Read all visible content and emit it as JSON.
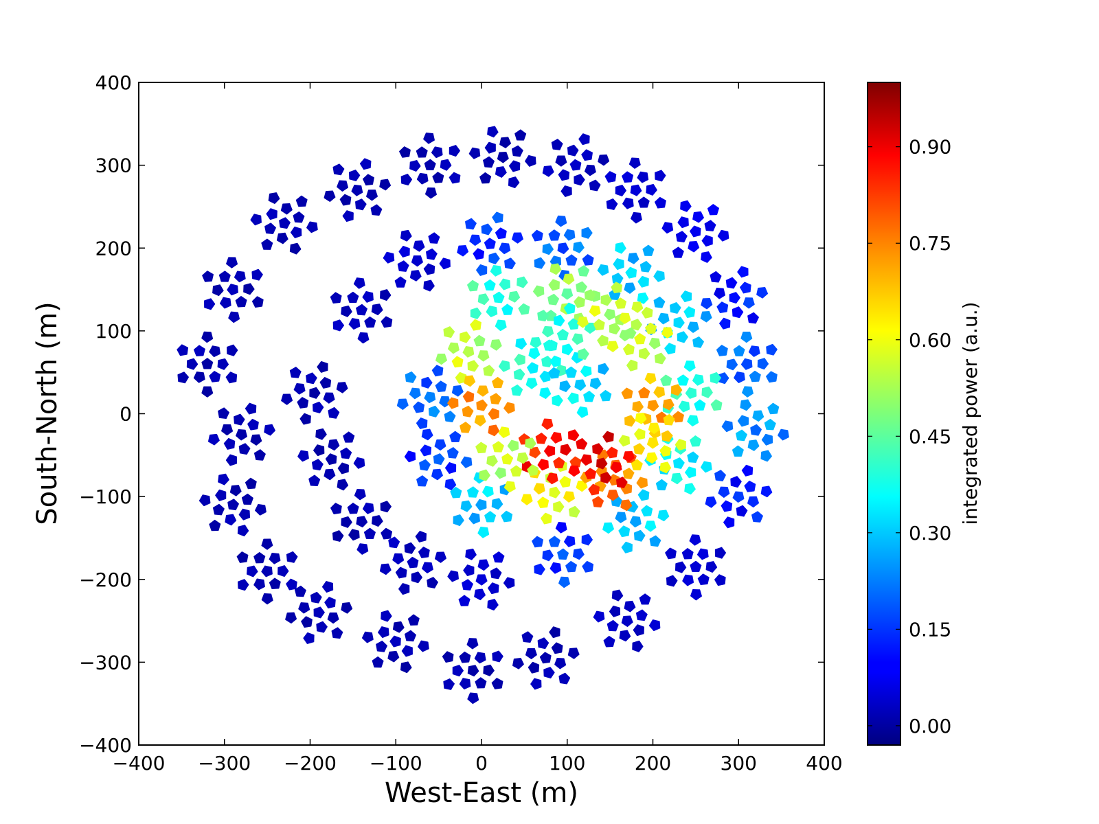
{
  "chart_data": {
    "type": "scatter",
    "title": "",
    "xlabel": "West-East (m)",
    "ylabel": "South-North (m)",
    "xlim": [
      -400,
      400
    ],
    "ylim": [
      -400,
      400
    ],
    "xticks": [
      "−400",
      "−300",
      "−200",
      "−100",
      "0",
      "100",
      "200",
      "300",
      "400"
    ],
    "yticks": [
      "−400",
      "−300",
      "−200",
      "−100",
      "0",
      "100",
      "200",
      "300",
      "400"
    ],
    "grid": false,
    "marker": "pentagon-ring tiles of small antenna elements",
    "colorbar": {
      "label": "integrated power (a.u.)",
      "colormap": "jet",
      "range": [
        -0.03,
        1.0
      ],
      "ticks": [
        "0.00",
        "0.15",
        "0.30",
        "0.45",
        "0.60",
        "0.75",
        "0.90"
      ]
    },
    "stations": [
      {
        "x": -320,
        "y": 60,
        "value": 0.02
      },
      {
        "x": -280,
        "y": -25,
        "value": 0.02
      },
      {
        "x": -290,
        "y": -110,
        "value": 0.02
      },
      {
        "x": -250,
        "y": -190,
        "value": 0.02
      },
      {
        "x": -190,
        "y": -240,
        "value": 0.02
      },
      {
        "x": -100,
        "y": -275,
        "value": 0.02
      },
      {
        "x": -10,
        "y": -310,
        "value": 0.02
      },
      {
        "x": 75,
        "y": -295,
        "value": 0.02
      },
      {
        "x": 170,
        "y": -250,
        "value": 0.04
      },
      {
        "x": 250,
        "y": -185,
        "value": 0.05
      },
      {
        "x": 300,
        "y": -100,
        "value": 0.12
      },
      {
        "x": 320,
        "y": -20,
        "value": 0.25
      },
      {
        "x": 310,
        "y": 60,
        "value": 0.2
      },
      {
        "x": 295,
        "y": 140,
        "value": 0.12
      },
      {
        "x": 250,
        "y": 220,
        "value": 0.08
      },
      {
        "x": 180,
        "y": 270,
        "value": 0.05
      },
      {
        "x": 110,
        "y": 300,
        "value": 0.03
      },
      {
        "x": 25,
        "y": 310,
        "value": 0.02
      },
      {
        "x": -60,
        "y": 300,
        "value": 0.02
      },
      {
        "x": -145,
        "y": 270,
        "value": 0.02
      },
      {
        "x": -230,
        "y": 230,
        "value": 0.02
      },
      {
        "x": -290,
        "y": 150,
        "value": 0.02
      },
      {
        "x": -195,
        "y": 25,
        "value": 0.02
      },
      {
        "x": -175,
        "y": -55,
        "value": 0.02
      },
      {
        "x": -140,
        "y": -130,
        "value": 0.02
      },
      {
        "x": -80,
        "y": -180,
        "value": 0.03
      },
      {
        "x": 0,
        "y": -200,
        "value": 0.05
      },
      {
        "x": 95,
        "y": -170,
        "value": 0.15
      },
      {
        "x": 180,
        "y": -130,
        "value": 0.3
      },
      {
        "x": 230,
        "y": -60,
        "value": 0.35
      },
      {
        "x": 245,
        "y": 25,
        "value": 0.4
      },
      {
        "x": 230,
        "y": 110,
        "value": 0.3
      },
      {
        "x": 175,
        "y": 170,
        "value": 0.3
      },
      {
        "x": 95,
        "y": 200,
        "value": 0.2
      },
      {
        "x": 10,
        "y": 205,
        "value": 0.15
      },
      {
        "x": -75,
        "y": 185,
        "value": 0.05
      },
      {
        "x": -140,
        "y": 125,
        "value": 0.03
      },
      {
        "x": -60,
        "y": 20,
        "value": 0.2
      },
      {
        "x": -50,
        "y": -55,
        "value": 0.15
      },
      {
        "x": 0,
        "y": -110,
        "value": 0.3
      },
      {
        "x": 85,
        "y": -95,
        "value": 0.6
      },
      {
        "x": 155,
        "y": -80,
        "value": 0.75
      },
      {
        "x": 200,
        "y": 10,
        "value": 0.7
      },
      {
        "x": 185,
        "y": 90,
        "value": 0.55
      },
      {
        "x": 100,
        "y": 145,
        "value": 0.5
      },
      {
        "x": 20,
        "y": 140,
        "value": 0.4
      },
      {
        "x": -15,
        "y": 75,
        "value": 0.55
      },
      {
        "x": 0,
        "y": 10,
        "value": 0.72
      },
      {
        "x": 80,
        "y": -45,
        "value": 0.85
      },
      {
        "x": 140,
        "y": -60,
        "value": 0.88
      },
      {
        "x": 60,
        "y": 55,
        "value": 0.38
      },
      {
        "x": 115,
        "y": 35,
        "value": 0.32
      },
      {
        "x": 95,
        "y": 95,
        "value": 0.4
      },
      {
        "x": 200,
        "y": -35,
        "value": 0.62
      },
      {
        "x": 30,
        "y": -55,
        "value": 0.55
      },
      {
        "x": 150,
        "y": 120,
        "value": 0.55
      }
    ]
  }
}
